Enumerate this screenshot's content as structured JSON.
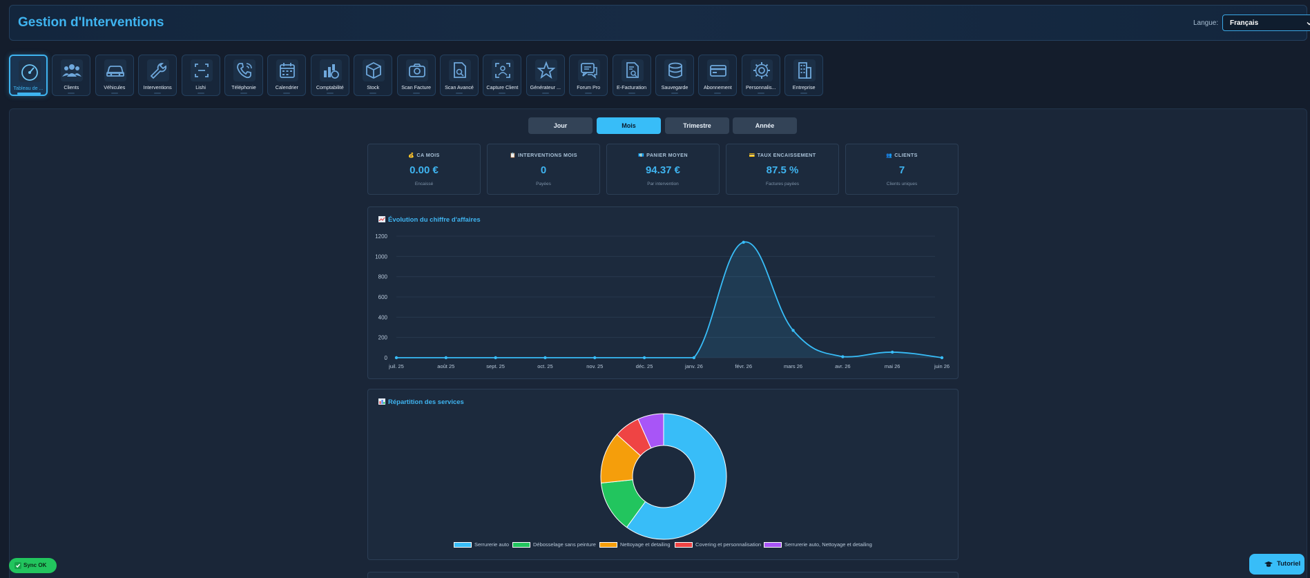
{
  "header": {
    "title": "Gestion d'Interventions",
    "lang_label": "Langue:",
    "lang_value": "Français"
  },
  "nav": [
    {
      "label": "Tableau de ...",
      "icon": "gauge-icon",
      "active": true
    },
    {
      "label": "Clients",
      "icon": "users-icon"
    },
    {
      "label": "Véhicules",
      "icon": "car-icon"
    },
    {
      "label": "Interventions",
      "icon": "wrench-icon"
    },
    {
      "label": "Lishi",
      "icon": "scan-frame-icon"
    },
    {
      "label": "Téléphonie",
      "icon": "phone-icon"
    },
    {
      "label": "Calendrier",
      "icon": "calendar-icon"
    },
    {
      "label": "Comptabilité",
      "icon": "chart-coin-icon"
    },
    {
      "label": "Stock",
      "icon": "box-icon"
    },
    {
      "label": "Scan Facture",
      "icon": "camera-icon"
    },
    {
      "label": "Scan Avancé",
      "icon": "file-search-icon"
    },
    {
      "label": "Capture Client",
      "icon": "user-scan-icon"
    },
    {
      "label": "Générateur ...",
      "icon": "star-icon"
    },
    {
      "label": "Forum Pro",
      "icon": "chat-icon"
    },
    {
      "label": "E-Facturation",
      "icon": "invoice-search-icon"
    },
    {
      "label": "Sauvegarde",
      "icon": "database-icon"
    },
    {
      "label": "Abonnement",
      "icon": "credit-card-icon"
    },
    {
      "label": "Personnalis...",
      "icon": "gear-icon"
    },
    {
      "label": "Entreprise",
      "icon": "building-icon"
    }
  ],
  "periods": [
    {
      "label": "Jour"
    },
    {
      "label": "Mois",
      "active": true
    },
    {
      "label": "Trimestre"
    },
    {
      "label": "Année"
    }
  ],
  "kpis": [
    {
      "icon": "💰",
      "label": "CA MOIS",
      "value": "0.00 €",
      "sub": "Encaissé"
    },
    {
      "icon": "📋",
      "label": "INTERVENTIONS MOIS",
      "value": "0",
      "sub": "Payées"
    },
    {
      "icon": "💶",
      "label": "PANIER MOYEN",
      "value": "94.37 €",
      "sub": "Par intervention"
    },
    {
      "icon": "💳",
      "label": "TAUX ENCAISSEMENT",
      "value": "87.5 %",
      "sub": "Factures payées"
    },
    {
      "icon": "👥",
      "label": "CLIENTS",
      "value": "7",
      "sub": "Clients uniques"
    }
  ],
  "revenue_panel": {
    "title": "Évolution du chiffre d'affaires"
  },
  "services_panel": {
    "title": "Répartition des services"
  },
  "colors": {
    "accent": "#38bdf8",
    "success": "#22c55e",
    "bg": "#141d2c"
  },
  "chart_data": [
    {
      "type": "line",
      "title": "Évolution du chiffre d'affaires",
      "categories": [
        "juil. 25",
        "août 25",
        "sept. 25",
        "oct. 25",
        "nov. 25",
        "déc. 25",
        "janv. 26",
        "févr. 26",
        "mars 26",
        "avr. 26",
        "mai 26",
        "juin 26"
      ],
      "series": [
        {
          "values": [
            0,
            0,
            0,
            0,
            0,
            0,
            0,
            1140,
            270,
            10,
            55,
            0
          ]
        }
      ],
      "yticks": [
        0,
        200,
        400,
        600,
        800,
        1000,
        1200
      ],
      "ylim": [
        0,
        1200
      ],
      "grid": true,
      "fill": "area"
    },
    {
      "type": "pie",
      "title": "Répartition des services",
      "labels": [
        "Serrurerie auto",
        "Débosselage sans peinture",
        "Nettoyage et detailing",
        "Covering et personnalisation",
        "Serrurerie auto, Nettoyage et detailing"
      ],
      "values": [
        9,
        2,
        2,
        1,
        1
      ],
      "colors": [
        "#38bdf8",
        "#22c55e",
        "#f59e0b",
        "#ef4444",
        "#a855f7"
      ],
      "legend": "bottom",
      "donut": true
    }
  ],
  "footer": {
    "sync_label": "Sync OK",
    "tutorial_label": "Tutoriel"
  }
}
